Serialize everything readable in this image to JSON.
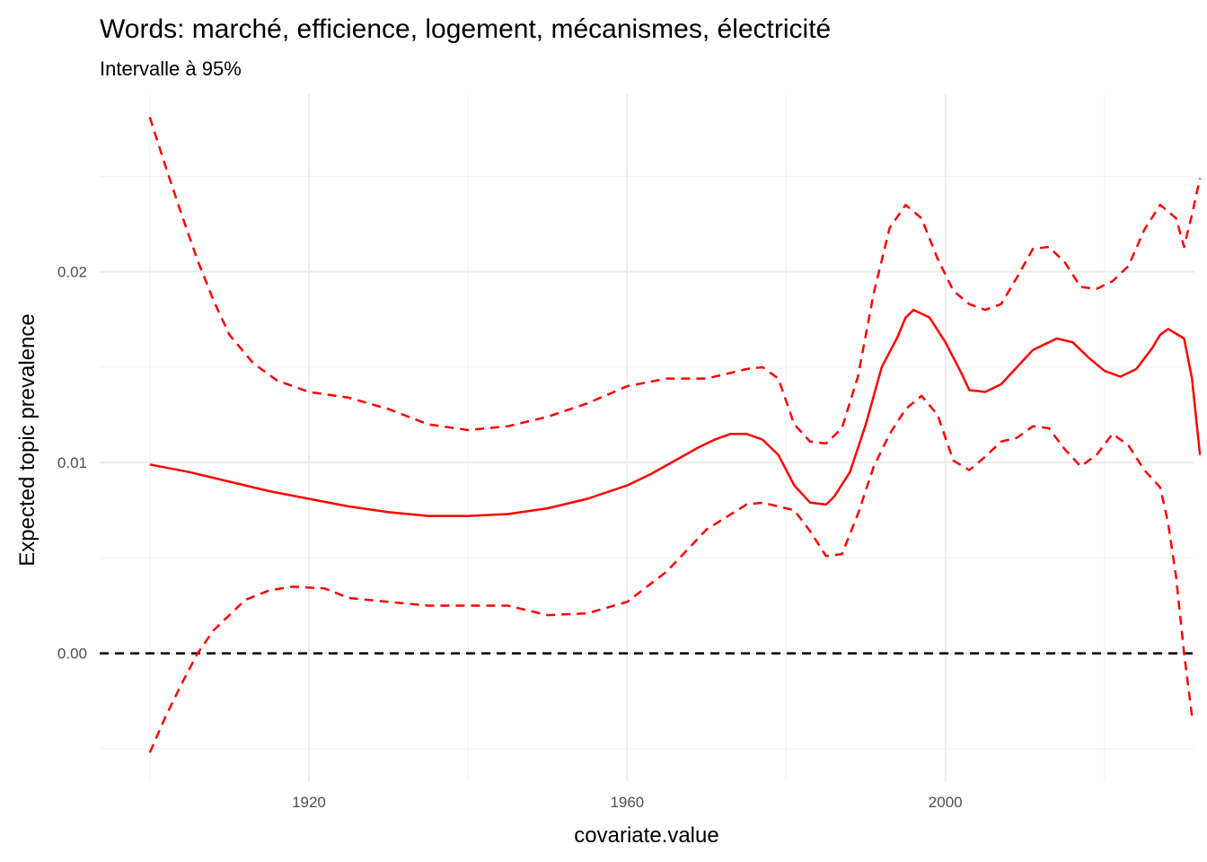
{
  "chart_data": {
    "type": "line",
    "title": "Words: marché, efficience, logement, mécanismes, électricité",
    "subtitle": "Intervalle à 95%",
    "xlabel": "covariate.value",
    "ylabel": "Expected topic prevalence",
    "xlim": [
      1893.7,
      2031.3
    ],
    "ylim": [
      -0.0067,
      0.0293
    ],
    "x_ticks": [
      1920,
      1960,
      2000
    ],
    "y_ticks": [
      0.0,
      0.01,
      0.02
    ],
    "y_tick_labels": [
      "0.00",
      "0.01",
      "0.02"
    ],
    "grid": true,
    "reference_line": {
      "y": 0,
      "style": "dashed",
      "color": "#000000"
    },
    "line_color": "#ff0000",
    "series": [
      {
        "role": "estimate",
        "style": "solid",
        "points": [
          [
            1900,
            0.0099
          ],
          [
            1905,
            0.0095
          ],
          [
            1910,
            0.009
          ],
          [
            1915,
            0.0085
          ],
          [
            1920,
            0.0081
          ],
          [
            1925,
            0.0077
          ],
          [
            1930,
            0.0074
          ],
          [
            1935,
            0.0072
          ],
          [
            1940,
            0.0072
          ],
          [
            1945,
            0.0073
          ],
          [
            1950,
            0.0076
          ],
          [
            1955,
            0.0081
          ],
          [
            1960,
            0.0088
          ],
          [
            1963,
            0.0094
          ],
          [
            1966,
            0.0101
          ],
          [
            1969,
            0.0108
          ],
          [
            1971,
            0.0112
          ],
          [
            1973,
            0.0115
          ],
          [
            1975,
            0.0115
          ],
          [
            1977,
            0.0112
          ],
          [
            1979,
            0.0104
          ],
          [
            1981,
            0.0088
          ],
          [
            1983,
            0.0079
          ],
          [
            1985,
            0.0078
          ],
          [
            1986,
            0.0082
          ],
          [
            1988,
            0.0095
          ],
          [
            1990,
            0.012
          ],
          [
            1992,
            0.015
          ],
          [
            1994,
            0.0166
          ],
          [
            1995,
            0.0176
          ],
          [
            1996,
            0.018
          ],
          [
            1998,
            0.0176
          ],
          [
            2000,
            0.0163
          ],
          [
            2002,
            0.0147
          ],
          [
            2003,
            0.0138
          ],
          [
            2005,
            0.0137
          ],
          [
            2007,
            0.0141
          ],
          [
            2009,
            0.015
          ],
          [
            2011,
            0.0159
          ],
          [
            2013,
            0.0163
          ],
          [
            2014,
            0.0165
          ],
          [
            2016,
            0.0163
          ],
          [
            2018,
            0.0155
          ],
          [
            2020,
            0.0148
          ],
          [
            2022,
            0.0145
          ],
          [
            2024,
            0.0149
          ],
          [
            2026,
            0.016
          ],
          [
            2027,
            0.0167
          ],
          [
            2028,
            0.017
          ],
          [
            2030,
            0.0165
          ],
          [
            2031,
            0.0144
          ],
          [
            2032,
            0.0104
          ]
        ]
      },
      {
        "role": "upper-95",
        "style": "dashed",
        "points": [
          [
            1900,
            0.0281
          ],
          [
            1902,
            0.0255
          ],
          [
            1904,
            0.023
          ],
          [
            1906,
            0.0206
          ],
          [
            1908,
            0.0185
          ],
          [
            1910,
            0.0167
          ],
          [
            1913,
            0.0152
          ],
          [
            1916,
            0.0143
          ],
          [
            1920,
            0.0137
          ],
          [
            1925,
            0.0134
          ],
          [
            1930,
            0.0128
          ],
          [
            1935,
            0.012
          ],
          [
            1940,
            0.0117
          ],
          [
            1945,
            0.0119
          ],
          [
            1950,
            0.0124
          ],
          [
            1955,
            0.0131
          ],
          [
            1960,
            0.014
          ],
          [
            1965,
            0.0144
          ],
          [
            1970,
            0.0144
          ],
          [
            1975,
            0.0149
          ],
          [
            1977,
            0.015
          ],
          [
            1979,
            0.0144
          ],
          [
            1981,
            0.012
          ],
          [
            1983,
            0.0111
          ],
          [
            1985,
            0.011
          ],
          [
            1987,
            0.0118
          ],
          [
            1989,
            0.0145
          ],
          [
            1991,
            0.0189
          ],
          [
            1993,
            0.0223
          ],
          [
            1995,
            0.0235
          ],
          [
            1997,
            0.0228
          ],
          [
            1999,
            0.0207
          ],
          [
            2001,
            0.019
          ],
          [
            2003,
            0.0183
          ],
          [
            2005,
            0.018
          ],
          [
            2007,
            0.0183
          ],
          [
            2009,
            0.0197
          ],
          [
            2011,
            0.0212
          ],
          [
            2013,
            0.0213
          ],
          [
            2015,
            0.0205
          ],
          [
            2017,
            0.0192
          ],
          [
            2019,
            0.0191
          ],
          [
            2021,
            0.0195
          ],
          [
            2023,
            0.0203
          ],
          [
            2025,
            0.0222
          ],
          [
            2027,
            0.0235
          ],
          [
            2029,
            0.0228
          ],
          [
            2030,
            0.0213
          ],
          [
            2031,
            0.023
          ],
          [
            2032,
            0.0249
          ]
        ]
      },
      {
        "role": "lower-95",
        "style": "dashed",
        "points": [
          [
            1900,
            -0.0052
          ],
          [
            1902,
            -0.0033
          ],
          [
            1904,
            -0.0016
          ],
          [
            1906,
            0.0
          ],
          [
            1908,
            0.0012
          ],
          [
            1910,
            0.002
          ],
          [
            1912,
            0.0028
          ],
          [
            1915,
            0.0033
          ],
          [
            1918,
            0.0035
          ],
          [
            1922,
            0.0034
          ],
          [
            1925,
            0.0029
          ],
          [
            1930,
            0.0027
          ],
          [
            1935,
            0.0025
          ],
          [
            1940,
            0.0025
          ],
          [
            1945,
            0.0025
          ],
          [
            1950,
            0.002
          ],
          [
            1955,
            0.0021
          ],
          [
            1960,
            0.0027
          ],
          [
            1965,
            0.0043
          ],
          [
            1970,
            0.0065
          ],
          [
            1975,
            0.0078
          ],
          [
            1977,
            0.0079
          ],
          [
            1979,
            0.0077
          ],
          [
            1981,
            0.0075
          ],
          [
            1983,
            0.0064
          ],
          [
            1985,
            0.0051
          ],
          [
            1987,
            0.0052
          ],
          [
            1989,
            0.0073
          ],
          [
            1991,
            0.0098
          ],
          [
            1993,
            0.0115
          ],
          [
            1995,
            0.0128
          ],
          [
            1997,
            0.0135
          ],
          [
            1999,
            0.0125
          ],
          [
            2001,
            0.0101
          ],
          [
            2003,
            0.0096
          ],
          [
            2005,
            0.0103
          ],
          [
            2007,
            0.0111
          ],
          [
            2009,
            0.0113
          ],
          [
            2011,
            0.0119
          ],
          [
            2013,
            0.0118
          ],
          [
            2015,
            0.0107
          ],
          [
            2017,
            0.0098
          ],
          [
            2019,
            0.0104
          ],
          [
            2021,
            0.0115
          ],
          [
            2023,
            0.0109
          ],
          [
            2025,
            0.0096
          ],
          [
            2027,
            0.0087
          ],
          [
            2028,
            0.0068
          ],
          [
            2029,
            0.004
          ],
          [
            2030,
            0.0
          ],
          [
            2031,
            -0.0033
          ]
        ]
      }
    ]
  }
}
